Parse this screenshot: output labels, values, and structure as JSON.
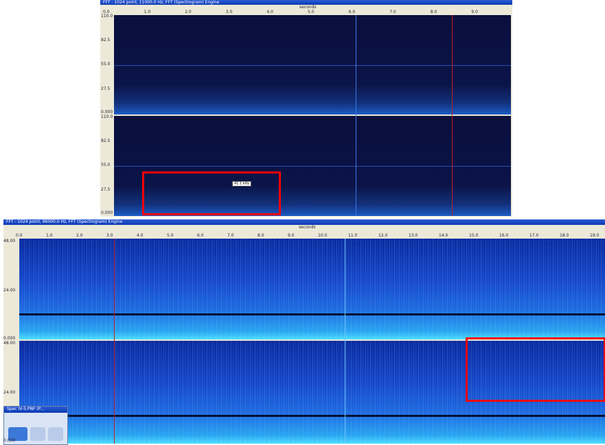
{
  "top_window": {
    "title": "FFT - 1024 point, 11000.0 Hz, FFT (Spectrogram) Engine",
    "axis_label": "seconds",
    "x_ticks": [
      "0.0",
      "1.0",
      "2.0",
      "3.0",
      "4.0",
      "5.0",
      "6.0",
      "7.0",
      "8.0",
      "9.0"
    ],
    "y_ticks": [
      "110.0",
      "82.5",
      "55.0",
      "27.5",
      "0.000"
    ],
    "tooltip": "41.1 kHz"
  },
  "bottom_window": {
    "title": "FFT - 1024 point, 96000.0 Hz, FFT (Spectrogram) Engine",
    "axis_label": "seconds",
    "x_ticks": [
      "0.0",
      "1.0",
      "2.0",
      "3.0",
      "4.0",
      "5.0",
      "6.0",
      "7.0",
      "8.0",
      "9.0",
      "10.0",
      "11.0",
      "12.0",
      "13.0",
      "14.0",
      "15.0",
      "16.0",
      "17.0",
      "18.0",
      "19.0"
    ],
    "y_ticks": [
      "48.00",
      "24.00",
      "0.000"
    ]
  },
  "popup": {
    "title": "Spec IV-5.PNF (P..."
  }
}
